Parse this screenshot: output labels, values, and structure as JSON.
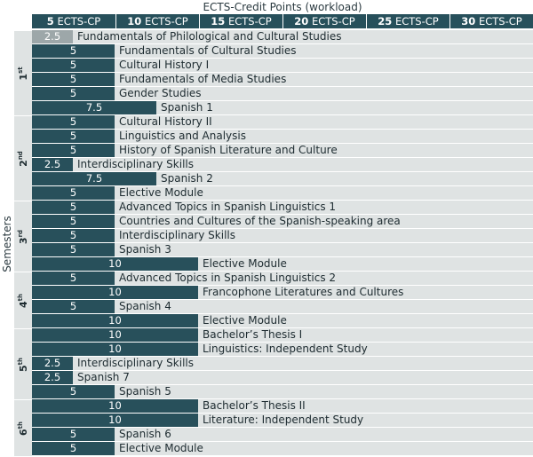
{
  "title": "ECTS-Credit Points (workload)",
  "axis_label": "Semesters",
  "headers": [
    {
      "value": "5",
      "unit": "ECTS-CP"
    },
    {
      "value": "10",
      "unit": "ECTS-CP"
    },
    {
      "value": "15",
      "unit": "ECTS-CP"
    },
    {
      "value": "20",
      "unit": "ECTS-CP"
    },
    {
      "value": "25",
      "unit": "ECTS-CP"
    },
    {
      "value": "30",
      "unit": "ECTS-CP"
    }
  ],
  "semesters": [
    {
      "num": "1",
      "suffix": "st",
      "modules": [
        {
          "cp": "2.5",
          "name": "Fundamentals of Philological and Cultural Studies"
        },
        {
          "cp": "5",
          "name": "Fundamentals of Cultural Studies"
        },
        {
          "cp": "5",
          "name": "Cultural History I"
        },
        {
          "cp": "5",
          "name": "Fundamentals of Media Studies"
        },
        {
          "cp": "5",
          "name": "Gender Studies"
        },
        {
          "cp": "7.5",
          "name": "Spanish 1"
        }
      ]
    },
    {
      "num": "2",
      "suffix": "nd",
      "modules": [
        {
          "cp": "5",
          "name": "Cultural History II"
        },
        {
          "cp": "5",
          "name": "Linguistics and Analysis"
        },
        {
          "cp": "5",
          "name": "History of Spanish Literature and Culture"
        },
        {
          "cp": "2.5",
          "name": "Interdisciplinary Skills"
        },
        {
          "cp": "7.5",
          "name": "Spanish 2"
        },
        {
          "cp": "5",
          "name": "Elective Module"
        }
      ]
    },
    {
      "num": "3",
      "suffix": "rd",
      "modules": [
        {
          "cp": "5",
          "name": "Advanced Topics in Spanish Linguistics 1"
        },
        {
          "cp": "5",
          "name": "Countries and Cultures of the Spanish-speaking area"
        },
        {
          "cp": "5",
          "name": "Interdisciplinary Skills"
        },
        {
          "cp": "5",
          "name": "Spanish 3"
        },
        {
          "cp": "10",
          "name": "Elective Module"
        }
      ]
    },
    {
      "num": "4",
      "suffix": "th",
      "modules": [
        {
          "cp": "5",
          "name": "Advanced Topics in Spanish Linguistics 2"
        },
        {
          "cp": "10",
          "name": "Francophone Literatures and Cultures"
        },
        {
          "cp": "5",
          "name": "Spanish 4"
        },
        {
          "cp": "10",
          "name": "Elective Module"
        }
      ]
    },
    {
      "num": "5",
      "suffix": "th",
      "modules": [
        {
          "cp": "10",
          "name": "Bachelor’s Thesis I"
        },
        {
          "cp": "10",
          "name": "Linguistics: Independent Study"
        },
        {
          "cp": "2.5",
          "name": "Interdisciplinary Skills"
        },
        {
          "cp": "2.5",
          "name": "Spanish 7"
        },
        {
          "cp": "5",
          "name": "Spanish 5"
        }
      ]
    },
    {
      "num": "6",
      "suffix": "th",
      "modules": [
        {
          "cp": "10",
          "name": "Bachelor’s Thesis II"
        },
        {
          "cp": "10",
          "name": "Literature: Independent Study"
        },
        {
          "cp": "5",
          "name": "Spanish 6"
        },
        {
          "cp": "5",
          "name": "Elective Module"
        }
      ]
    }
  ],
  "colors": {
    "bar": "#28505b",
    "bar_first": "#9da7a9",
    "row_bg": "#dfe3e3",
    "header_bg": "#27505b"
  }
}
